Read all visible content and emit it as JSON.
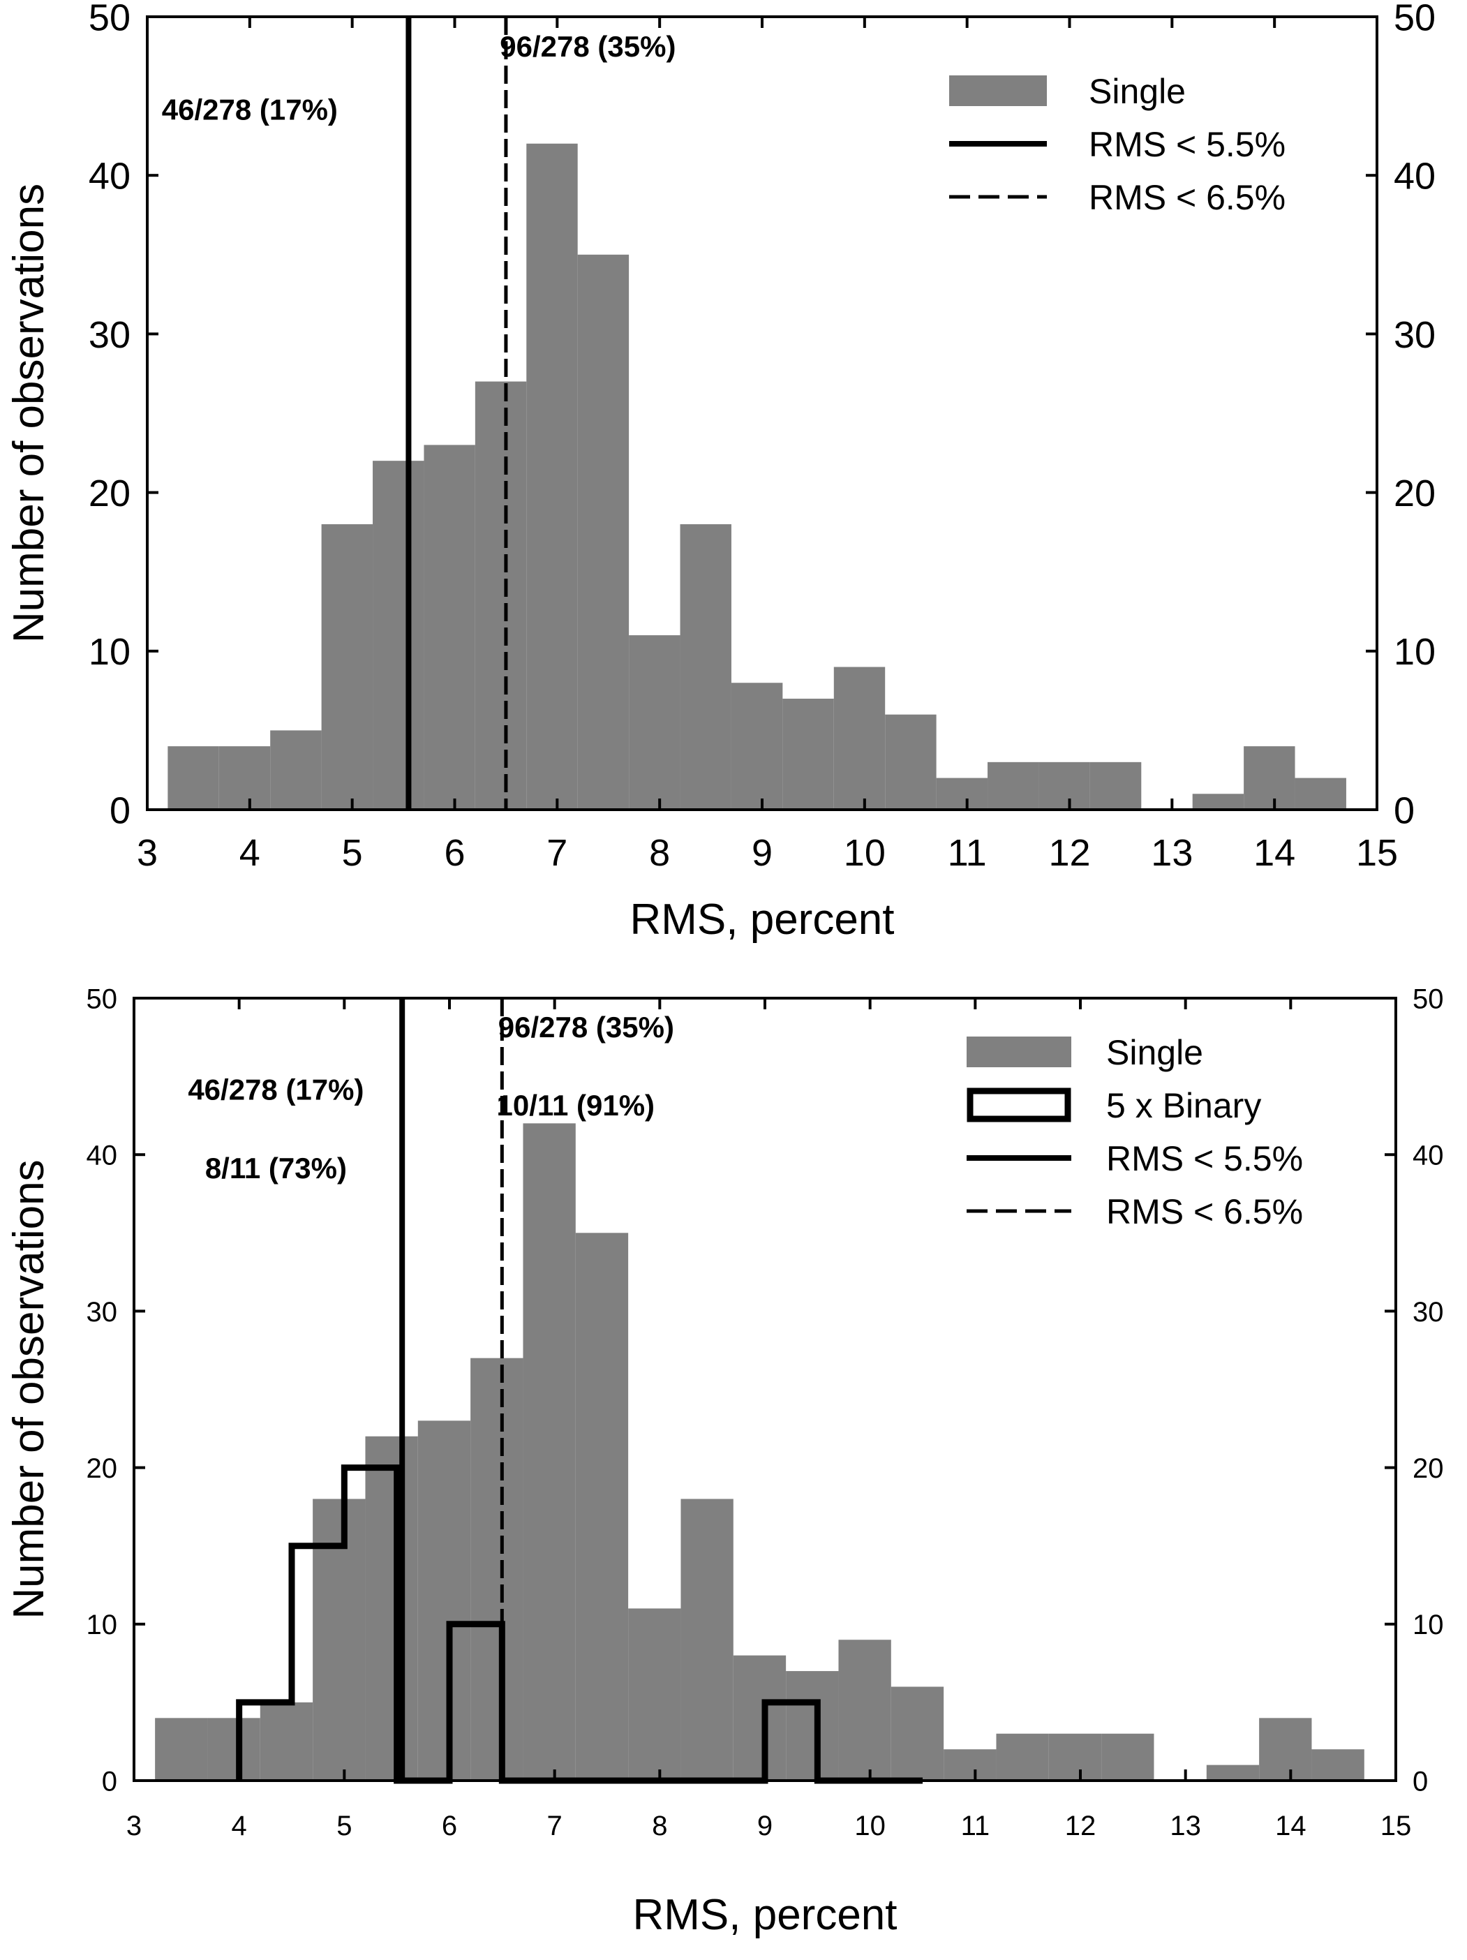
{
  "chart_data": [
    {
      "type": "bar",
      "xlabel": "RMS, percent",
      "ylabel": "Number of observations",
      "xlim": [
        3,
        15
      ],
      "ylim": [
        0,
        50
      ],
      "x_ticks": [
        "3",
        "4",
        "5",
        "6",
        "7",
        "8",
        "9",
        "10",
        "11",
        "12",
        "13",
        "14",
        "15"
      ],
      "y_ticks": [
        "0",
        "10",
        "20",
        "30",
        "40",
        "50"
      ],
      "grid": false,
      "right_axis_labels": true,
      "legend_position": "top-right",
      "series": [
        {
          "name": "Single",
          "kind": "histogram",
          "color": "#808080",
          "bins": [
            {
              "x0": 3.2,
              "x1": 3.7,
              "value": 4
            },
            {
              "x0": 3.7,
              "x1": 4.2,
              "value": 4
            },
            {
              "x0": 4.2,
              "x1": 4.7,
              "value": 5
            },
            {
              "x0": 4.7,
              "x1": 5.2,
              "value": 18
            },
            {
              "x0": 5.2,
              "x1": 5.7,
              "value": 22
            },
            {
              "x0": 5.7,
              "x1": 6.2,
              "value": 23
            },
            {
              "x0": 6.2,
              "x1": 6.7,
              "value": 27
            },
            {
              "x0": 6.7,
              "x1": 7.2,
              "value": 42
            },
            {
              "x0": 7.2,
              "x1": 7.7,
              "value": 35
            },
            {
              "x0": 7.7,
              "x1": 8.2,
              "value": 11
            },
            {
              "x0": 8.2,
              "x1": 8.7,
              "value": 18
            },
            {
              "x0": 8.7,
              "x1": 9.2,
              "value": 8
            },
            {
              "x0": 9.2,
              "x1": 9.7,
              "value": 7
            },
            {
              "x0": 9.7,
              "x1": 10.2,
              "value": 9
            },
            {
              "x0": 10.2,
              "x1": 10.7,
              "value": 6
            },
            {
              "x0": 10.7,
              "x1": 11.2,
              "value": 2
            },
            {
              "x0": 11.2,
              "x1": 11.7,
              "value": 3
            },
            {
              "x0": 11.7,
              "x1": 12.2,
              "value": 3
            },
            {
              "x0": 12.2,
              "x1": 12.7,
              "value": 3
            },
            {
              "x0": 12.7,
              "x1": 13.2,
              "value": 0
            },
            {
              "x0": 13.2,
              "x1": 13.7,
              "value": 1
            },
            {
              "x0": 13.7,
              "x1": 14.2,
              "value": 4
            },
            {
              "x0": 14.2,
              "x1": 14.7,
              "value": 2
            }
          ]
        },
        {
          "name": "RMS < 5.5%",
          "kind": "vline",
          "x": 5.55,
          "style": "solid"
        },
        {
          "name": "RMS < 6.5%",
          "kind": "vline",
          "x": 6.5,
          "style": "dashed"
        }
      ],
      "annotations": [
        {
          "text": "46/278 (17%)",
          "x": 4.0,
          "y": 43.5,
          "anchor": "middle"
        },
        {
          "text": "96/278 (35%)",
          "x": 7.3,
          "y": 47.5,
          "anchor": "middle"
        }
      ]
    },
    {
      "type": "bar",
      "xlabel": "RMS, percent",
      "ylabel": "Number of observations",
      "xlim": [
        3,
        15
      ],
      "ylim": [
        0,
        50
      ],
      "x_ticks": [
        "3",
        "4",
        "5",
        "6",
        "7",
        "8",
        "9",
        "10",
        "11",
        "12",
        "13",
        "14",
        "15"
      ],
      "y_ticks": [
        "0",
        "10",
        "20",
        "30",
        "40",
        "50"
      ],
      "grid": false,
      "right_axis_labels": true,
      "legend_position": "top-right",
      "series": [
        {
          "name": "Single",
          "kind": "histogram",
          "color": "#808080",
          "bins": [
            {
              "x0": 3.2,
              "x1": 3.7,
              "value": 4
            },
            {
              "x0": 3.7,
              "x1": 4.2,
              "value": 4
            },
            {
              "x0": 4.2,
              "x1": 4.7,
              "value": 5
            },
            {
              "x0": 4.7,
              "x1": 5.2,
              "value": 18
            },
            {
              "x0": 5.2,
              "x1": 5.7,
              "value": 22
            },
            {
              "x0": 5.7,
              "x1": 6.2,
              "value": 23
            },
            {
              "x0": 6.2,
              "x1": 6.7,
              "value": 27
            },
            {
              "x0": 6.7,
              "x1": 7.2,
              "value": 42
            },
            {
              "x0": 7.2,
              "x1": 7.7,
              "value": 35
            },
            {
              "x0": 7.7,
              "x1": 8.2,
              "value": 11
            },
            {
              "x0": 8.2,
              "x1": 8.7,
              "value": 18
            },
            {
              "x0": 8.7,
              "x1": 9.2,
              "value": 8
            },
            {
              "x0": 9.2,
              "x1": 9.7,
              "value": 7
            },
            {
              "x0": 9.7,
              "x1": 10.2,
              "value": 9
            },
            {
              "x0": 10.2,
              "x1": 10.7,
              "value": 6
            },
            {
              "x0": 10.7,
              "x1": 11.2,
              "value": 2
            },
            {
              "x0": 11.2,
              "x1": 11.7,
              "value": 3
            },
            {
              "x0": 11.7,
              "x1": 12.2,
              "value": 3
            },
            {
              "x0": 12.2,
              "x1": 12.7,
              "value": 3
            },
            {
              "x0": 12.7,
              "x1": 13.2,
              "value": 0
            },
            {
              "x0": 13.2,
              "x1": 13.7,
              "value": 1
            },
            {
              "x0": 13.7,
              "x1": 14.2,
              "value": 4
            },
            {
              "x0": 14.2,
              "x1": 14.7,
              "value": 2
            }
          ]
        },
        {
          "name": "5 x Binary",
          "kind": "step",
          "color": "#000000",
          "bins": [
            {
              "x0": 4.0,
              "x1": 4.5,
              "value": 5
            },
            {
              "x0": 4.5,
              "x1": 5.0,
              "value": 15
            },
            {
              "x0": 5.0,
              "x1": 5.5,
              "value": 20
            },
            {
              "x0": 5.5,
              "x1": 6.0,
              "value": 0
            },
            {
              "x0": 6.0,
              "x1": 6.5,
              "value": 10
            },
            {
              "x0": 6.5,
              "x1": 7.0,
              "value": 0
            },
            {
              "x0": 7.0,
              "x1": 7.5,
              "value": 0
            },
            {
              "x0": 7.5,
              "x1": 8.0,
              "value": 0
            },
            {
              "x0": 8.0,
              "x1": 8.5,
              "value": 0
            },
            {
              "x0": 8.5,
              "x1": 9.0,
              "value": 0
            },
            {
              "x0": 9.0,
              "x1": 9.5,
              "value": 5
            },
            {
              "x0": 9.5,
              "x1": 10.0,
              "value": 0
            },
            {
              "x0": 10.0,
              "x1": 10.5,
              "value": 0
            }
          ]
        },
        {
          "name": "RMS < 5.5%",
          "kind": "vline",
          "x": 5.55,
          "style": "solid"
        },
        {
          "name": "RMS < 6.5%",
          "kind": "vline",
          "x": 6.5,
          "style": "dashed"
        }
      ],
      "annotations": [
        {
          "text": "46/278 (17%)",
          "x": 4.35,
          "y": 43.5,
          "anchor": "middle"
        },
        {
          "text": "8/11 (73%)",
          "x": 4.35,
          "y": 38.5,
          "anchor": "middle"
        },
        {
          "text": "96/278 (35%)",
          "x": 7.3,
          "y": 47.5,
          "anchor": "middle"
        },
        {
          "text": "10/11 (91%)",
          "x": 7.2,
          "y": 42.5,
          "anchor": "middle"
        }
      ]
    }
  ]
}
